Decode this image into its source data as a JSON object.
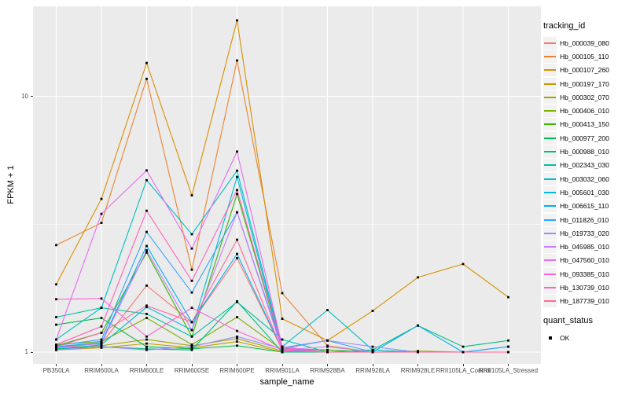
{
  "figure": {
    "background": "#FFFFFF",
    "panel_background": "#EBEBEB",
    "grid_color": "#FFFFFF",
    "axis_text_color": "#4D4D4D",
    "point_color": "#000000"
  },
  "legend": {
    "tracking_title": "tracking_id",
    "quant_title": "quant_status",
    "quant_items": [
      {
        "label": "OK"
      }
    ]
  },
  "chart_data": {
    "type": "line",
    "title": "",
    "xlabel": "sample_name",
    "ylabel": "FPKM + 1",
    "y_scale": "log10",
    "ylim": [
      1,
      22
    ],
    "y_tick_values": [
      1,
      10
    ],
    "grid": "major-and-minor",
    "legend_position": "right",
    "categories": [
      "PB350LA",
      "RRIM600LA",
      "RRIM600LE",
      "RRIM600SE",
      "RRIM600PE",
      "RRIM901LA",
      "RRIM928BA",
      "RRIM928LA",
      "RRIM928LE",
      "RRII105LA_Control",
      "RRII105LA_Stressed"
    ],
    "series": [
      {
        "name": "Hb_000039_080",
        "color": "#F8766D",
        "values": [
          1.05,
          1.08,
          1.82,
          1.31,
          2.33,
          1.02,
          1.0,
          1.0,
          1.0,
          1.0,
          1.0
        ]
      },
      {
        "name": "Hb_000105_110",
        "color": "#EA8331",
        "values": [
          2.62,
          3.2,
          11.7,
          2.1,
          13.8,
          1.7,
          1.06,
          1.0,
          1.0,
          1.0,
          1.0
        ]
      },
      {
        "name": "Hb_000107_260",
        "color": "#D89000",
        "values": [
          1.84,
          3.97,
          13.5,
          4.1,
          19.8,
          1.35,
          1.11,
          1.45,
          1.96,
          2.21,
          1.64
        ]
      },
      {
        "name": "Hb_000197_170",
        "color": "#C09B00",
        "values": [
          1.02,
          1.04,
          1.08,
          1.04,
          1.1,
          1.0,
          1.0,
          1.0,
          1.0,
          1.0,
          1.0
        ]
      },
      {
        "name": "Hb_000302_070",
        "color": "#A3A500",
        "values": [
          1.04,
          1.06,
          1.12,
          1.06,
          1.13,
          1.01,
          1.0,
          1.0,
          1.01,
          1.0,
          1.0
        ]
      },
      {
        "name": "Hb_000406_010",
        "color": "#7CAE00",
        "values": [
          1.07,
          1.1,
          1.36,
          1.07,
          1.37,
          1.02,
          1.0,
          1.0,
          1.0,
          1.0,
          1.0
        ]
      },
      {
        "name": "Hb_000413_150",
        "color": "#39B600",
        "values": [
          1.06,
          1.19,
          2.45,
          1.15,
          4.15,
          1.03,
          1.02,
          1.0,
          1.0,
          1.0,
          1.0
        ]
      },
      {
        "name": "Hb_000977_200",
        "color": "#00BB4E",
        "values": [
          1.28,
          1.36,
          1.05,
          1.03,
          1.06,
          1.0,
          1.0,
          1.0,
          1.0,
          1.0,
          1.0
        ]
      },
      {
        "name": "Hb_000988_010",
        "color": "#00BF7D",
        "values": [
          1.03,
          1.05,
          1.03,
          1.02,
          1.58,
          1.0,
          1.0,
          1.02,
          1.27,
          1.05,
          1.11
        ]
      },
      {
        "name": "Hb_002343_030",
        "color": "#00C1A3",
        "values": [
          1.37,
          1.49,
          1.41,
          1.15,
          1.57,
          1.12,
          1.0,
          1.0,
          1.0,
          1.0,
          1.0
        ]
      },
      {
        "name": "Hb_003032_060",
        "color": "#00BFC4",
        "values": [
          1.12,
          1.49,
          4.7,
          2.89,
          5.12,
          1.05,
          1.46,
          1.02,
          1.0,
          1.0,
          1.0
        ]
      },
      {
        "name": "Hb_005601_030",
        "color": "#00BBDA",
        "values": [
          1.02,
          1.07,
          1.5,
          1.22,
          4.84,
          1.03,
          1.0,
          1.0,
          1.0,
          1.0,
          1.0
        ]
      },
      {
        "name": "Hb_006615_110",
        "color": "#00B0F6",
        "values": [
          1.05,
          1.09,
          2.6,
          1.31,
          2.42,
          1.02,
          1.0,
          1.0,
          1.27,
          1.0,
          1.05
        ]
      },
      {
        "name": "Hb_011826_010",
        "color": "#35A2FF",
        "values": [
          1.06,
          1.12,
          2.95,
          1.71,
          3.52,
          1.04,
          1.11,
          1.0,
          1.0,
          1.0,
          1.05
        ]
      },
      {
        "name": "Hb_019733_020",
        "color": "#9590FF",
        "values": [
          1.02,
          1.05,
          1.02,
          1.05,
          1.15,
          1.03,
          1.11,
          1.05,
          1.0,
          1.0,
          1.0
        ]
      },
      {
        "name": "Hb_045985_010",
        "color": "#C77CFF",
        "values": [
          1.04,
          1.08,
          2.5,
          1.22,
          3.52,
          1.02,
          1.05,
          1.0,
          1.0,
          1.0,
          1.0
        ]
      },
      {
        "name": "Hb_047560_010",
        "color": "#E76BF3",
        "values": [
          1.12,
          3.47,
          5.13,
          2.54,
          6.08,
          1.05,
          1.0,
          1.0,
          1.0,
          1.0,
          1.0
        ]
      },
      {
        "name": "Hb_093385_010",
        "color": "#FA62DB",
        "values": [
          1.61,
          1.62,
          1.15,
          1.49,
          1.21,
          1.02,
          1.0,
          1.0,
          1.0,
          1.0,
          1.0
        ]
      },
      {
        "name": "Hb_130739_010",
        "color": "#FF62BC",
        "values": [
          1.07,
          1.26,
          3.57,
          1.9,
          4.3,
          1.04,
          1.0,
          1.0,
          1.0,
          1.0,
          1.0
        ]
      },
      {
        "name": "Hb_187739_010",
        "color": "#FF6A98",
        "values": [
          1.05,
          1.19,
          1.52,
          1.31,
          2.75,
          1.01,
          1.0,
          1.0,
          1.0,
          1.0,
          1.0
        ]
      }
    ]
  }
}
